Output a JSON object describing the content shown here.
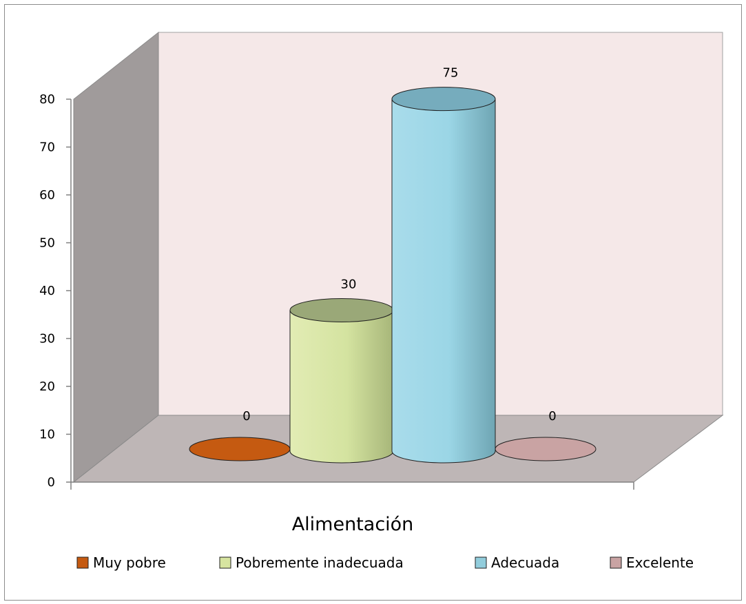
{
  "chart_data": {
    "type": "bar",
    "style": "3d-cylinder",
    "xlabel": "Alimentación",
    "ylabel": "",
    "ylim": [
      0,
      80
    ],
    "yticks": [
      0,
      10,
      20,
      30,
      40,
      50,
      60,
      70,
      80
    ],
    "grid": false,
    "legend_position": "bottom",
    "categories": [
      "Muy pobre",
      "Pobremente inadecuada",
      "Adecuada",
      "Excelente"
    ],
    "values": [
      0,
      30,
      75,
      0
    ],
    "data_labels": [
      "0",
      "30",
      "75",
      "0"
    ],
    "series": [
      {
        "name": "Muy pobre",
        "value": 0,
        "color": "#c55a11"
      },
      {
        "name": "Pobremente inadecuada",
        "value": 30,
        "color": "#d7e4a0"
      },
      {
        "name": "Adecuada",
        "value": 75,
        "color": "#92cddc"
      },
      {
        "name": "Excelente",
        "value": 0,
        "color": "#c9a3a3"
      }
    ],
    "colors": {
      "back_wall": "#f5e8e8",
      "side_wall": "#a09b9b",
      "floor": "#beb6b6"
    }
  }
}
